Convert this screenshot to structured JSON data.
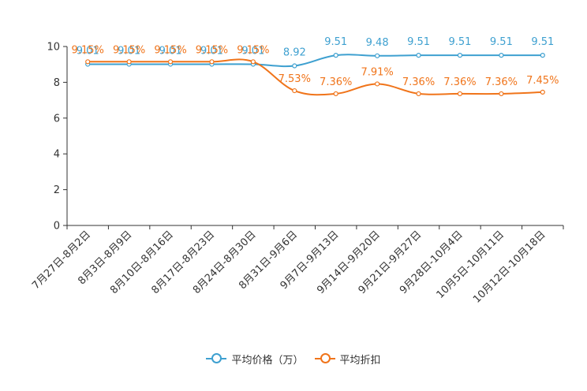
{
  "chart_data": {
    "type": "line",
    "title": "",
    "xlabel": "",
    "ylabel": "",
    "ylim": [
      0,
      10
    ],
    "yticks": [
      0,
      2,
      4,
      6,
      8,
      10
    ],
    "categories": [
      "7月27日-8月2日",
      "8月3日-8月9日",
      "8月10日-8月16日",
      "8月17日-8月23日",
      "8月24日-8月30日",
      "8月31日-9月6日",
      "9月7日-9月13日",
      "9月14日-9月20日",
      "9月21日-9月27日",
      "9月28日-10月4日",
      "10月5日-10月11日",
      "10月12日-10月18日"
    ],
    "series": [
      {
        "name": "平均价格（万）",
        "color": "#3ea0d0",
        "values": [
          9.01,
          9.01,
          9.01,
          9.01,
          9.01,
          8.92,
          9.51,
          9.48,
          9.51,
          9.51,
          9.51,
          9.51
        ],
        "labels": [
          "9.01",
          "9.01",
          "9.01",
          "9.01",
          "9.01",
          "8.92",
          "9.51",
          "9.48",
          "9.51",
          "9.51",
          "9.51",
          "9.51"
        ]
      },
      {
        "name": "平均折扣",
        "color": "#f0741a",
        "values": [
          9.15,
          9.15,
          9.15,
          9.15,
          9.15,
          7.53,
          7.36,
          7.91,
          7.36,
          7.36,
          7.36,
          7.45
        ],
        "labels": [
          "9.15%",
          "9.15%",
          "9.15%",
          "9.15%",
          "9.15%",
          "7.53%",
          "7.36%",
          "7.91%",
          "7.36%",
          "7.36%",
          "7.36%",
          "7.45%"
        ]
      }
    ],
    "legend_position": "bottom-center",
    "grid": false
  }
}
